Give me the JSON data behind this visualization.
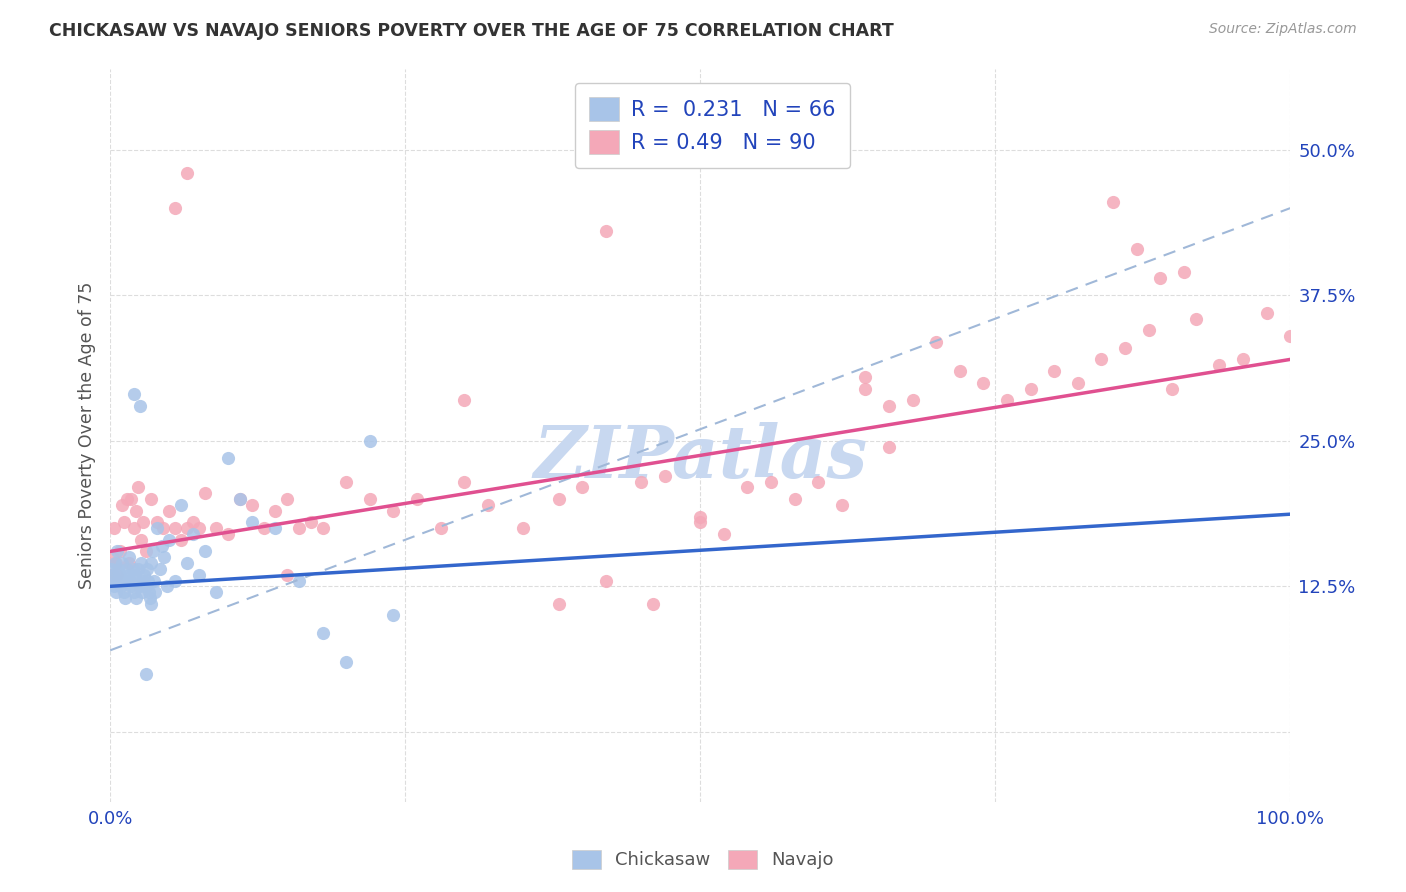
{
  "title": "CHICKASAW VS NAVAJO SENIORS POVERTY OVER THE AGE OF 75 CORRELATION CHART",
  "source": "Source: ZipAtlas.com",
  "ylabel": "Seniors Poverty Over the Age of 75",
  "chickasaw_R": 0.231,
  "chickasaw_N": 66,
  "navajo_R": 0.49,
  "navajo_N": 90,
  "chickasaw_color": "#a8c4e8",
  "navajo_color": "#f4a8b8",
  "chickasaw_line_color": "#3366cc",
  "navajo_line_color": "#e05090",
  "dash_line_color": "#a0b8d8",
  "watermark": "ZIPatlas",
  "watermark_color": "#c8d8f0",
  "legend_text_color": "#2244bb",
  "tick_color": "#2244bb",
  "background_color": "#ffffff",
  "grid_color": "#dddddd",
  "xlim": [
    0.0,
    1.0
  ],
  "ylim": [
    -0.06,
    0.57
  ],
  "x_ticks": [
    0.0,
    0.25,
    0.5,
    0.75,
    1.0
  ],
  "y_ticks": [
    0.0,
    0.125,
    0.25,
    0.375,
    0.5
  ],
  "chickasaw_x": [
    0.001,
    0.002,
    0.003,
    0.003,
    0.004,
    0.005,
    0.006,
    0.007,
    0.007,
    0.008,
    0.009,
    0.01,
    0.011,
    0.012,
    0.013,
    0.014,
    0.015,
    0.016,
    0.017,
    0.018,
    0.019,
    0.02,
    0.021,
    0.022,
    0.023,
    0.024,
    0.025,
    0.026,
    0.027,
    0.028,
    0.029,
    0.03,
    0.031,
    0.032,
    0.033,
    0.034,
    0.035,
    0.036,
    0.037,
    0.038,
    0.04,
    0.042,
    0.044,
    0.046,
    0.048,
    0.05,
    0.055,
    0.06,
    0.065,
    0.07,
    0.075,
    0.08,
    0.09,
    0.1,
    0.11,
    0.12,
    0.14,
    0.16,
    0.18,
    0.2,
    0.22,
    0.24,
    0.02,
    0.025,
    0.03,
    0.035
  ],
  "chickasaw_y": [
    0.14,
    0.135,
    0.125,
    0.13,
    0.145,
    0.12,
    0.155,
    0.13,
    0.14,
    0.135,
    0.125,
    0.145,
    0.13,
    0.12,
    0.115,
    0.14,
    0.135,
    0.15,
    0.13,
    0.125,
    0.14,
    0.12,
    0.135,
    0.115,
    0.13,
    0.14,
    0.125,
    0.145,
    0.12,
    0.13,
    0.135,
    0.125,
    0.14,
    0.13,
    0.12,
    0.115,
    0.145,
    0.155,
    0.13,
    0.12,
    0.175,
    0.14,
    0.16,
    0.15,
    0.125,
    0.165,
    0.13,
    0.195,
    0.145,
    0.17,
    0.135,
    0.155,
    0.12,
    0.235,
    0.2,
    0.18,
    0.175,
    0.13,
    0.085,
    0.06,
    0.25,
    0.1,
    0.29,
    0.28,
    0.05,
    0.11
  ],
  "navajo_x": [
    0.001,
    0.002,
    0.003,
    0.005,
    0.006,
    0.008,
    0.01,
    0.012,
    0.014,
    0.016,
    0.018,
    0.02,
    0.022,
    0.024,
    0.026,
    0.028,
    0.03,
    0.035,
    0.04,
    0.045,
    0.05,
    0.055,
    0.06,
    0.065,
    0.07,
    0.075,
    0.08,
    0.09,
    0.1,
    0.11,
    0.12,
    0.13,
    0.14,
    0.15,
    0.16,
    0.17,
    0.18,
    0.2,
    0.22,
    0.24,
    0.26,
    0.28,
    0.3,
    0.32,
    0.35,
    0.38,
    0.4,
    0.42,
    0.45,
    0.47,
    0.5,
    0.52,
    0.54,
    0.56,
    0.58,
    0.6,
    0.62,
    0.64,
    0.66,
    0.68,
    0.7,
    0.72,
    0.74,
    0.76,
    0.78,
    0.8,
    0.82,
    0.84,
    0.86,
    0.88,
    0.9,
    0.92,
    0.94,
    0.96,
    0.98,
    1.0,
    0.85,
    0.87,
    0.89,
    0.91,
    0.46,
    0.38,
    0.055,
    0.065,
    0.42,
    0.15,
    0.3,
    0.5,
    0.64,
    0.66
  ],
  "navajo_y": [
    0.135,
    0.15,
    0.175,
    0.145,
    0.135,
    0.155,
    0.195,
    0.18,
    0.2,
    0.145,
    0.2,
    0.175,
    0.19,
    0.21,
    0.165,
    0.18,
    0.155,
    0.2,
    0.18,
    0.175,
    0.19,
    0.175,
    0.165,
    0.175,
    0.18,
    0.175,
    0.205,
    0.175,
    0.17,
    0.2,
    0.195,
    0.175,
    0.19,
    0.2,
    0.175,
    0.18,
    0.175,
    0.215,
    0.2,
    0.19,
    0.2,
    0.175,
    0.285,
    0.195,
    0.175,
    0.2,
    0.21,
    0.13,
    0.215,
    0.22,
    0.18,
    0.17,
    0.21,
    0.215,
    0.2,
    0.215,
    0.195,
    0.305,
    0.28,
    0.285,
    0.335,
    0.31,
    0.3,
    0.285,
    0.295,
    0.31,
    0.3,
    0.32,
    0.33,
    0.345,
    0.295,
    0.355,
    0.315,
    0.32,
    0.36,
    0.34,
    0.455,
    0.415,
    0.39,
    0.395,
    0.11,
    0.11,
    0.45,
    0.48,
    0.43,
    0.135,
    0.215,
    0.185,
    0.295,
    0.245
  ]
}
